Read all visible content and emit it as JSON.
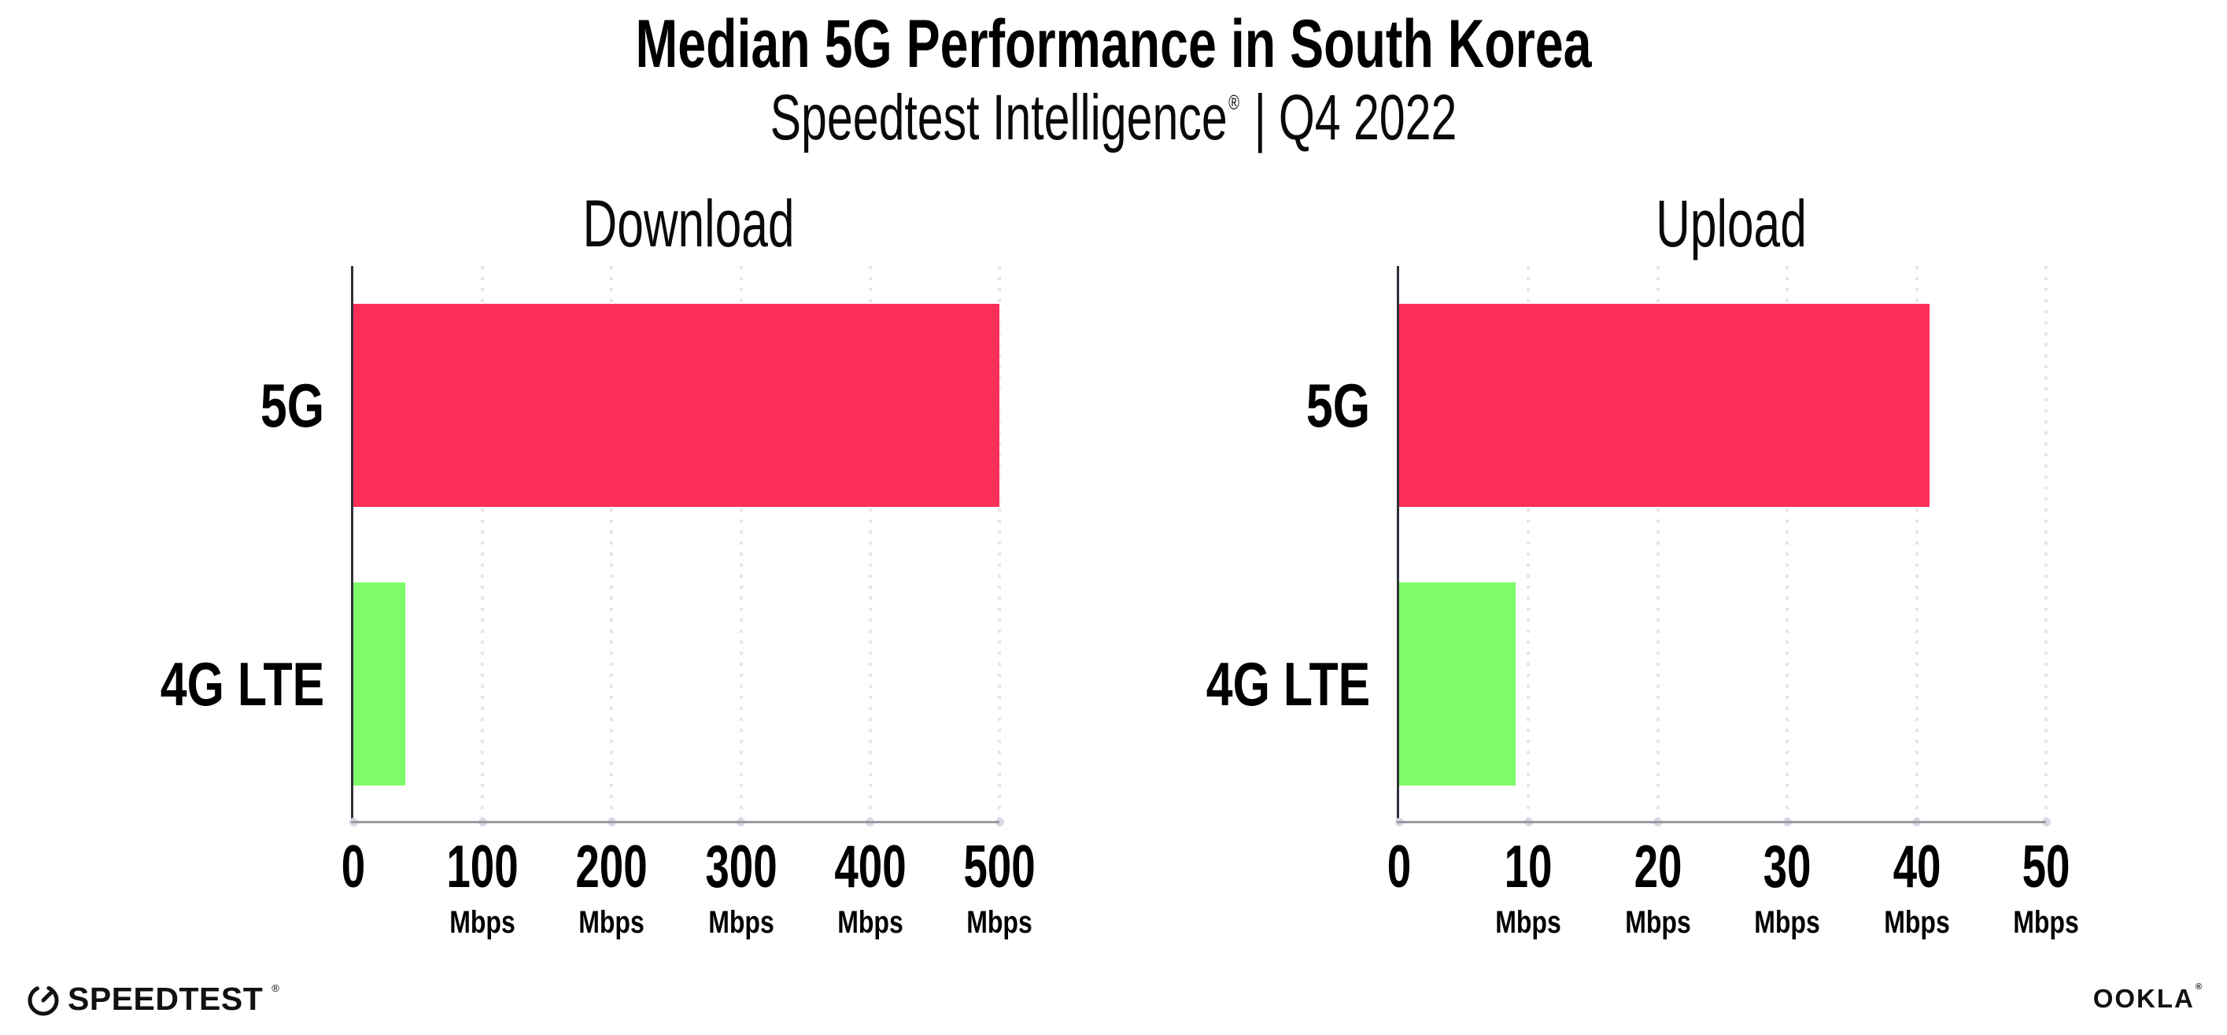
{
  "header": {
    "title": "Median 5G Performance in South Korea",
    "subtitle": {
      "brand": "Speedtest Intelligence",
      "reg": "®",
      "sep": "|",
      "period": "Q4 2022"
    }
  },
  "chart_data": [
    {
      "type": "bar",
      "orientation": "horizontal",
      "title": "Download",
      "categories": [
        "5G",
        "4G LTE"
      ],
      "values": [
        500,
        40
      ],
      "value_unit": "Mbps",
      "xlim": [
        0,
        500
      ],
      "ticks": [
        0,
        100,
        200,
        300,
        400,
        500
      ],
      "tick_unit": "Mbps",
      "bar_colors": [
        "#fd2e57",
        "#7efb66"
      ],
      "grid": "dotted-vertical",
      "legend": "none"
    },
    {
      "type": "bar",
      "orientation": "horizontal",
      "title": "Upload",
      "categories": [
        "5G",
        "4G LTE"
      ],
      "values": [
        41,
        9
      ],
      "value_unit": "Mbps",
      "xlim": [
        0,
        50
      ],
      "ticks": [
        0,
        10,
        20,
        30,
        40,
        50
      ],
      "tick_unit": "Mbps",
      "bar_colors": [
        "#fd2e57",
        "#7efb66"
      ],
      "grid": "dotted-vertical",
      "legend": "none"
    }
  ],
  "footer": {
    "speedtest_wordmark": "SPEEDTEST",
    "speedtest_reg": "®",
    "ookla_wordmark": "OOKLA",
    "ookla_reg": "®"
  },
  "colors": {
    "bar_5g": "#fd2e57",
    "bar_4g_lte": "#7efb66",
    "y_axis": "#30303a",
    "x_axis": "#9a9aa3",
    "gridline": "#e4e4ef",
    "tick_dot": "#d8d8e6",
    "text": "#000000",
    "background": "#ffffff"
  }
}
